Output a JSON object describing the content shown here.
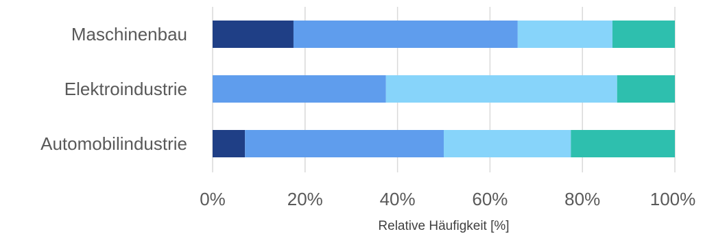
{
  "chart_data": {
    "type": "bar",
    "orientation": "horizontal",
    "stacked": "percent",
    "title": "",
    "categories": [
      "Maschinenbau",
      "Elektroindustrie",
      "Automobilindustrie"
    ],
    "series": [
      {
        "color": "#1f3f86",
        "values": [
          17.5,
          0,
          7
        ]
      },
      {
        "color": "#5f9ded",
        "values": [
          48.5,
          37.5,
          43
        ]
      },
      {
        "color": "#87d4fa",
        "values": [
          20.5,
          50,
          27.5
        ]
      },
      {
        "color": "#2ebfae",
        "values": [
          13.5,
          12.5,
          22.5
        ]
      }
    ],
    "xlabel": "Relative Häufigkeit [%]",
    "ylabel": "",
    "xlim": [
      0,
      100
    ],
    "xticks": [
      "0%",
      "20%",
      "40%",
      "60%",
      "80%",
      "100%"
    ],
    "grid": true,
    "legend": "none"
  }
}
